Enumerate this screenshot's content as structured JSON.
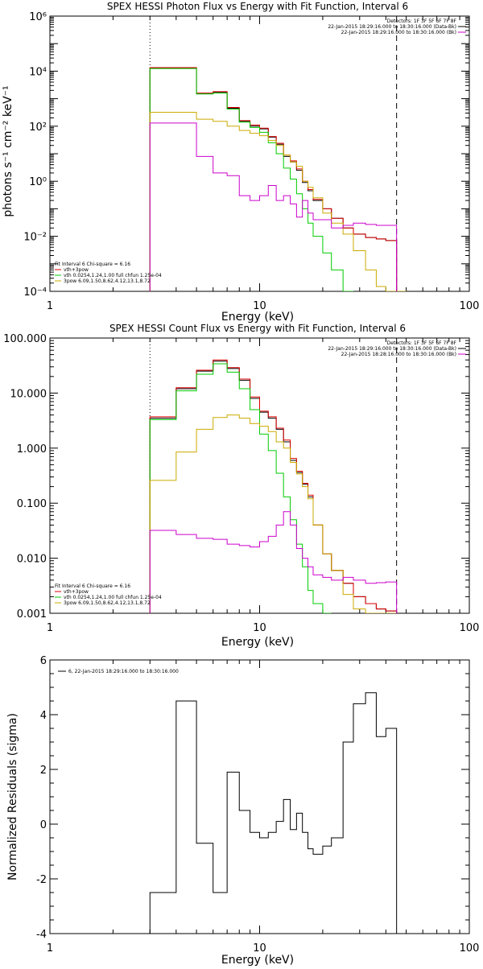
{
  "chart_data": [
    {
      "type": "line",
      "step": true,
      "title": "SPEX HESSI Photon Flux vs Energy with Fit Function, Interval 6",
      "xlabel": "Energy (keV)",
      "ylabel": "photons s⁻¹ cm⁻² keV⁻¹",
      "xscale": "log",
      "yscale": "log",
      "xlim": [
        1,
        100
      ],
      "ylim": [
        0.0001,
        1000000
      ],
      "xticks": [
        1,
        10,
        100
      ],
      "xticklabels": [
        "1",
        "10",
        "100"
      ],
      "yticks": [
        0.0001,
        0.01,
        1,
        100,
        10000,
        1000000
      ],
      "yticklabels": [
        "10⁻⁴",
        "10⁻²",
        "10⁰",
        "10²",
        "10⁴",
        "10⁶"
      ],
      "vlines": [
        {
          "x": 3,
          "style": "dotted"
        },
        {
          "x": 45,
          "style": "dashed"
        }
      ],
      "bin_edges": [
        3,
        4,
        5,
        6,
        7,
        8,
        9,
        10,
        11,
        12,
        13,
        14,
        15,
        16,
        17,
        18,
        20,
        22,
        25,
        28,
        32,
        36,
        40,
        45,
        50
      ],
      "legend_top": {
        "placement": "top-right",
        "lines": [
          {
            "text": "Detectors: 1F 3F 5F 6F 7F 8F",
            "color": ""
          },
          {
            "text": "22-Jan-2015 18:29:16.000 to 18:30:16.000 (Data-Bk)",
            "color": "#000000"
          },
          {
            "text": "22-Jan-2015 18:29:16.000 to 18:30:16.000 (Bk)",
            "color": "#cc00cc"
          }
        ]
      },
      "legend_bottom": {
        "placement": "bottom-left",
        "lines": [
          {
            "text": "Fit Interval 6   Chi-square = 6.16",
            "color": ""
          },
          {
            "text": "vth+3pow",
            "color": "#dd0000"
          },
          {
            "text": "vth 0.0254,1.24,1.00  full chfun 1.25e-04",
            "color": "#00cc00"
          },
          {
            "text": "3pow 6.09,1.50,8.62,4.12,13.1,8.72",
            "color": "#ccaa00"
          }
        ]
      },
      "series": [
        {
          "color": "#000000",
          "values": [
            13000,
            13000,
            1500,
            1700,
            450,
            150,
            100,
            80,
            40,
            22,
            8,
            5,
            2.5,
            0.9,
            0.45,
            0.2,
            0.1,
            0.045,
            0.02,
            0.012,
            0.009,
            0.008,
            0.007,
            null
          ]
        },
        {
          "color": "#dd0000",
          "values": [
            13500,
            13500,
            1600,
            1800,
            480,
            160,
            110,
            85,
            42,
            24,
            9,
            5.5,
            2.8,
            1,
            0.5,
            0.22,
            0.1,
            0.045,
            0.02,
            0.012,
            0.009,
            0.008,
            0.007,
            null
          ]
        },
        {
          "color": "#00cc00",
          "values": [
            12500,
            12500,
            1500,
            1600,
            420,
            140,
            90,
            60,
            25,
            10,
            3,
            1.2,
            0.35,
            0.1,
            0.03,
            0.01,
            0.0025,
            0.0006,
            9e-05,
            null,
            null,
            null,
            null,
            null
          ]
        },
        {
          "color": "#ccaa00",
          "values": [
            320,
            320,
            180,
            150,
            100,
            70,
            55,
            45,
            30,
            20,
            9,
            5,
            3.5,
            1,
            0.6,
            0.25,
            0.07,
            0.03,
            0.012,
            0.003,
            0.0006,
            0.00015,
            7e-05,
            5e-05
          ]
        },
        {
          "color": "#cc00cc",
          "values": [
            130,
            130,
            8,
            2,
            1.6,
            0.3,
            0.2,
            0.3,
            0.7,
            0.2,
            0.3,
            0.15,
            0.05,
            0.2,
            0.07,
            0.04,
            0.04,
            0.02,
            0.025,
            0.03,
            0.027,
            0.025,
            0.025,
            null
          ]
        }
      ]
    },
    {
      "type": "line",
      "step": true,
      "title": "SPEX HESSI Count Flux vs Energy with Fit Function, Interval 6",
      "xlabel": "Energy (keV)",
      "ylabel": "",
      "xscale": "log",
      "yscale": "log",
      "xlim": [
        1,
        100
      ],
      "ylim": [
        0.001,
        100
      ],
      "xticks": [
        1,
        10,
        100
      ],
      "xticklabels": [
        "1",
        "10",
        "100"
      ],
      "yticks": [
        0.001,
        0.01,
        0.1,
        1,
        10,
        100
      ],
      "yticklabels": [
        "0.001",
        "0.010",
        "0.100",
        "1.000",
        "10.000",
        "100.000"
      ],
      "vlines": [
        {
          "x": 3,
          "style": "dotted"
        },
        {
          "x": 45,
          "style": "dashed"
        }
      ],
      "bin_edges": [
        3,
        4,
        5,
        6,
        7,
        8,
        9,
        10,
        11,
        12,
        13,
        14,
        15,
        16,
        17,
        18,
        20,
        22,
        25,
        28,
        32,
        36,
        40,
        45,
        50
      ],
      "legend_top": {
        "placement": "top-right",
        "lines": [
          {
            "text": "Detectors: 1F 3F 5F 6F 7F 8F",
            "color": ""
          },
          {
            "text": "22-Jan-2015 18:29:16.000 to 18:30:16.000 (Data-Bk)",
            "color": "#000000"
          },
          {
            "text": "22-Jan-2015 18:28:16.000 to 18:30:16.000 (Bk)",
            "color": "#cc00cc"
          }
        ]
      },
      "legend_bottom": {
        "placement": "bottom-left",
        "lines": [
          {
            "text": "Fit Interval 6   Chi-square = 6.16",
            "color": ""
          },
          {
            "text": "vth+3pow",
            "color": "#dd0000"
          },
          {
            "text": "vth 0.0254,1.24,1.00  full chfun 1.25e-04",
            "color": "#00cc00"
          },
          {
            "text": "3pow 6.09,1.50,8.62,4.12,13.1,8.72",
            "color": "#ccaa00"
          }
        ]
      },
      "series": [
        {
          "color": "#000000",
          "values": [
            3.5,
            12,
            25,
            38,
            28,
            17,
            8,
            4.5,
            3.5,
            2.2,
            1.3,
            0.6,
            0.36,
            0.22,
            0.13,
            0.04,
            0.012,
            0.006,
            0.0035,
            0.002,
            0.0015,
            0.0012,
            0.0011,
            null
          ]
        },
        {
          "color": "#dd0000",
          "values": [
            3.7,
            12.5,
            26,
            40,
            29,
            18,
            8.5,
            4.7,
            3.7,
            2.3,
            1.4,
            0.65,
            0.38,
            0.23,
            0.14,
            0.04,
            0.012,
            0.006,
            0.0035,
            0.002,
            0.0015,
            0.0012,
            0.0011,
            null
          ]
        },
        {
          "color": "#00cc00",
          "values": [
            3.3,
            11,
            22,
            34,
            24,
            12,
            5,
            1.8,
            0.9,
            0.35,
            0.13,
            0.05,
            0.018,
            0.007,
            0.0026,
            0.0015,
            0.0009,
            null,
            null,
            null,
            null,
            null,
            null,
            null
          ]
        },
        {
          "color": "#ccaa00",
          "values": [
            0.26,
            0.85,
            2.2,
            3.6,
            4,
            3.5,
            2.8,
            2.5,
            2,
            1.3,
            1,
            0.55,
            0.34,
            0.2,
            0.12,
            0.04,
            0.012,
            0.006,
            0.0022,
            0.0012,
            0.001,
            0.0008,
            0.0006,
            null
          ]
        },
        {
          "color": "#cc00cc",
          "values": [
            0.032,
            0.027,
            0.023,
            0.022,
            0.018,
            0.017,
            0.016,
            0.02,
            0.025,
            0.04,
            0.07,
            0.04,
            0.015,
            0.01,
            0.007,
            0.005,
            0.0045,
            0.004,
            0.0045,
            0.004,
            0.0035,
            0.0036,
            0.0037,
            null
          ]
        }
      ]
    },
    {
      "type": "line",
      "step": true,
      "title": "",
      "xlabel": "Energy (keV)",
      "ylabel": "Normalized Residuals (sigma)",
      "xscale": "log",
      "yscale": "linear",
      "xlim": [
        1,
        100
      ],
      "ylim": [
        -4,
        6
      ],
      "xticks": [
        1,
        10,
        100
      ],
      "xticklabels": [
        "1",
        "10",
        "100"
      ],
      "yticks": [
        -4,
        -2,
        0,
        2,
        4,
        6
      ],
      "yticklabels": [
        "-4",
        "-2",
        "0",
        "2",
        "4",
        "6"
      ],
      "bin_edges": [
        3,
        4,
        5,
        6,
        7,
        8,
        9,
        10,
        11,
        12,
        13,
        14,
        15,
        16,
        17,
        18,
        20,
        22,
        25,
        28,
        32,
        36,
        40,
        45,
        50
      ],
      "legend_top": {
        "placement": "top-left",
        "lines": [
          {
            "text": "6, 22-Jan-2015 18:29:16.000 to 18:30:16.000",
            "color": "#000000"
          }
        ]
      },
      "series": [
        {
          "color": "#000000",
          "values": [
            -2.5,
            4.5,
            -0.7,
            -2.5,
            1.9,
            0.5,
            -0.3,
            -0.5,
            -0.3,
            0.1,
            0.9,
            -0.2,
            0.4,
            -0.3,
            -0.9,
            -1.1,
            -0.8,
            -0.5,
            3,
            4.4,
            4.8,
            3.2,
            3.5
          ]
        }
      ]
    }
  ]
}
